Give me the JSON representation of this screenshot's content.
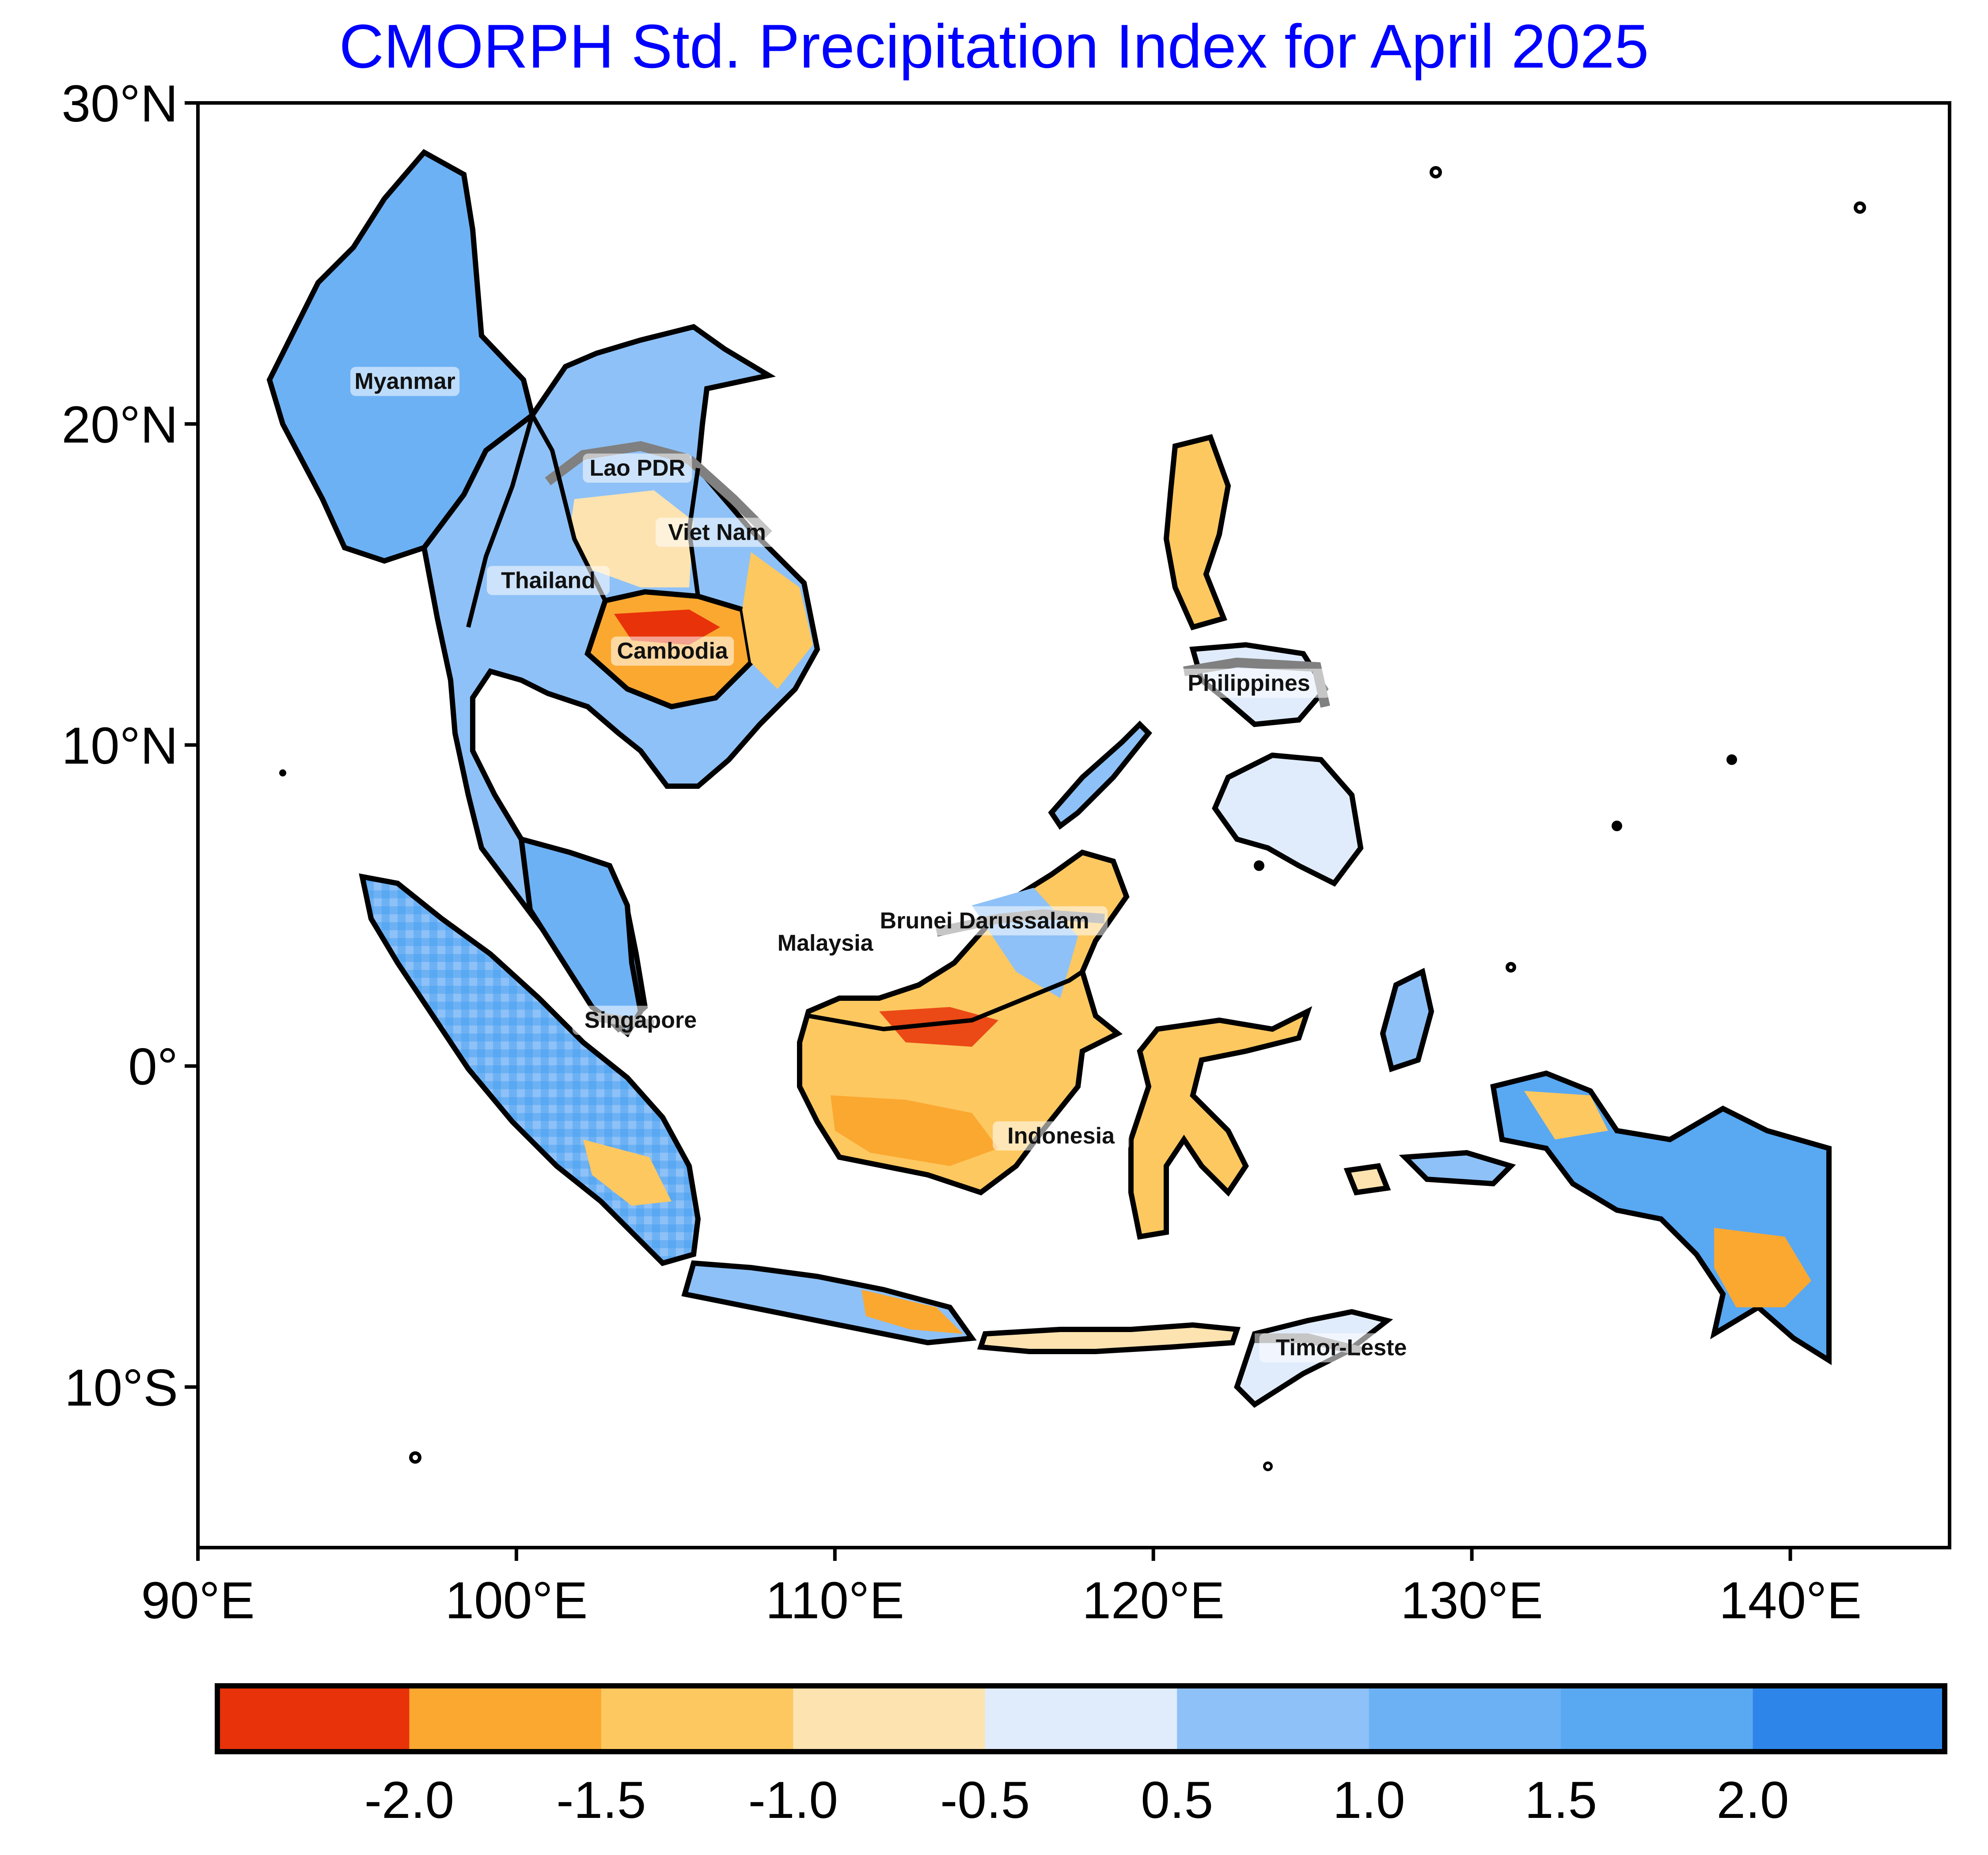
{
  "title": "CMORPH Std. Precipitation Index for April 2025",
  "map": {
    "lat_ticks": [
      "30°N",
      "20°N",
      "10°N",
      "0°",
      "10°S"
    ],
    "lon_ticks": [
      "90°E",
      "100°E",
      "110°E",
      "120°E",
      "130°E",
      "140°E"
    ],
    "extent": {
      "lon_min": 90,
      "lon_max": 145,
      "lat_min": -15,
      "lat_max": 30
    },
    "countries": [
      {
        "name": "Myanmar",
        "lon": 96.5,
        "lat": 21.2
      },
      {
        "name": "Lao PDR",
        "lon": 103.8,
        "lat": 18.5
      },
      {
        "name": "Viet Nam",
        "lon": 106.3,
        "lat": 16.5
      },
      {
        "name": "Thailand",
        "lon": 101.0,
        "lat": 15.0
      },
      {
        "name": "Cambodia",
        "lon": 104.9,
        "lat": 12.8
      },
      {
        "name": "Philippines",
        "lon": 123.0,
        "lat": 11.8
      },
      {
        "name": "Brunei Darussalam",
        "lon": 114.7,
        "lat": 4.4
      },
      {
        "name": "Malaysia",
        "lon": 109.7,
        "lat": 3.7
      },
      {
        "name": "Singapore",
        "lon": 103.9,
        "lat": 1.3
      },
      {
        "name": "Indonesia",
        "lon": 117.1,
        "lat": -2.3
      },
      {
        "name": "Timor-Leste",
        "lon": 125.9,
        "lat": -8.9
      }
    ]
  },
  "colorbar": {
    "tick_labels": [
      "-2.0",
      "-1.5",
      "-1.0",
      "-0.5",
      "0.5",
      "1.0",
      "1.5",
      "2.0"
    ],
    "colors": [
      "#e83209",
      "#fba830",
      "#fdc860",
      "#fde3b0",
      "#e0ecfc",
      "#8ec1f7",
      "#6db1f5",
      "#59a8f2",
      "#2d85ea"
    ]
  },
  "colors": {
    "title": "#0000ff",
    "border": "#000000",
    "highlight_border": "#808080"
  }
}
